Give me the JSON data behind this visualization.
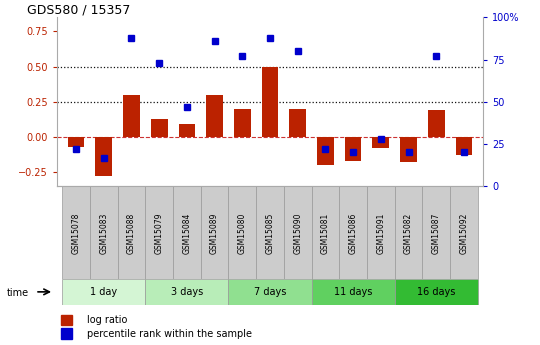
{
  "title": "GDS580 / 15357",
  "samples": [
    "GSM15078",
    "GSM15083",
    "GSM15088",
    "GSM15079",
    "GSM15084",
    "GSM15089",
    "GSM15080",
    "GSM15085",
    "GSM15090",
    "GSM15081",
    "GSM15086",
    "GSM15091",
    "GSM15082",
    "GSM15087",
    "GSM15092"
  ],
  "log_ratio": [
    -0.07,
    -0.28,
    0.3,
    0.13,
    0.09,
    0.3,
    0.2,
    0.5,
    0.2,
    -0.2,
    -0.17,
    -0.08,
    -0.18,
    0.19,
    -0.13
  ],
  "percentile_rank": [
    22,
    17,
    88,
    73,
    47,
    86,
    77,
    88,
    80,
    22,
    20,
    28,
    20,
    77,
    20
  ],
  "groups": [
    {
      "label": "1 day",
      "indices": [
        0,
        1,
        2
      ],
      "color": "#d4f5d4"
    },
    {
      "label": "3 days",
      "indices": [
        3,
        4,
        5
      ],
      "color": "#b8edB8"
    },
    {
      "label": "7 days",
      "indices": [
        6,
        7,
        8
      ],
      "color": "#90e090"
    },
    {
      "label": "11 days",
      "indices": [
        9,
        10,
        11
      ],
      "color": "#60d060"
    },
    {
      "label": "16 days",
      "indices": [
        12,
        13,
        14
      ],
      "color": "#33bb33"
    }
  ],
  "ylim_left": [
    -0.35,
    0.85
  ],
  "ylim_right": [
    0,
    100
  ],
  "yticks_left": [
    -0.25,
    0.0,
    0.25,
    0.5,
    0.75
  ],
  "yticks_right": [
    0,
    25,
    50,
    75,
    100
  ],
  "hlines": [
    0.25,
    0.5
  ],
  "bar_color": "#bb2200",
  "marker_color": "#0000cc",
  "zero_line_color": "#cc3333",
  "dotted_line_color": "#111111",
  "legend_labels": [
    "log ratio",
    "percentile rank within the sample"
  ],
  "legend_colors": [
    "#bb2200",
    "#0000cc"
  ],
  "bar_width": 0.6,
  "marker_size": 5
}
